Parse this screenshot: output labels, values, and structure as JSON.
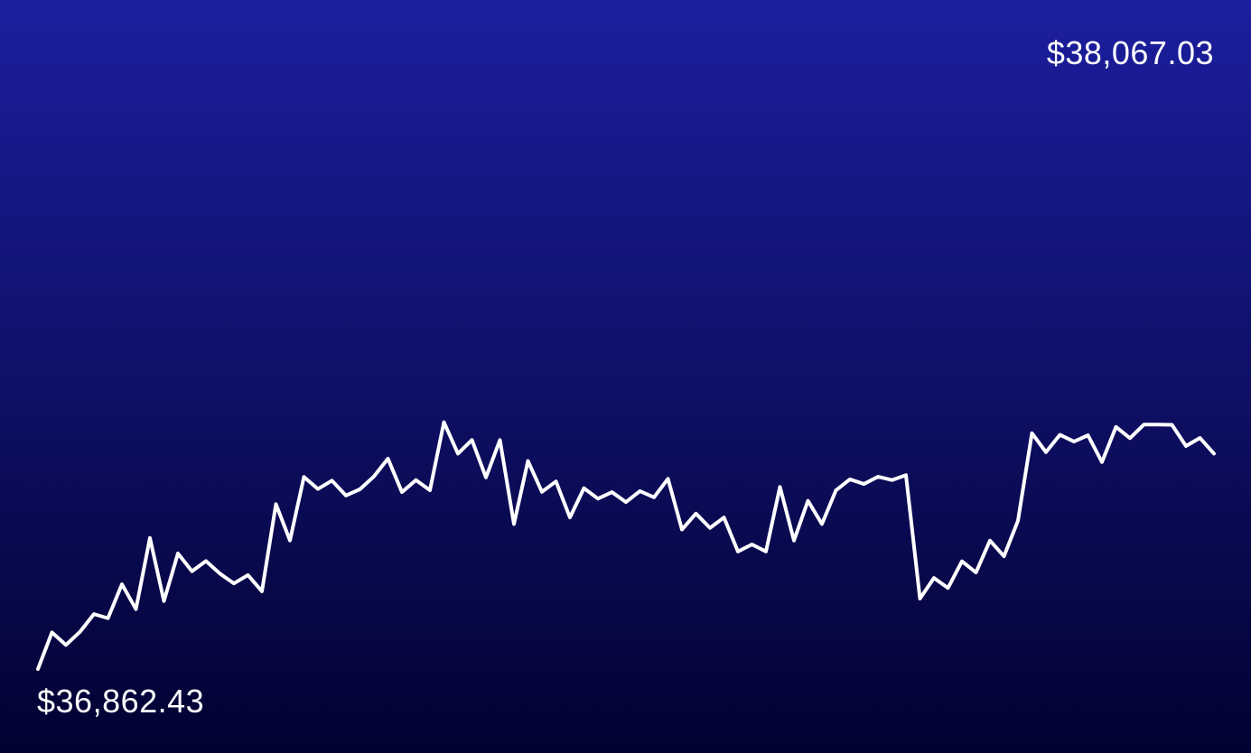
{
  "colors": {
    "background_top": "#1c1e9e",
    "background_bottom": "#020131",
    "line": "#ffffff"
  },
  "labels": {
    "high": "$38,067.03",
    "low": "$36,862.43"
  },
  "chart_data": {
    "type": "line",
    "title": "",
    "xlabel": "",
    "ylabel": "",
    "grid": false,
    "legend": "none",
    "ylim": [
      36862.43,
      38067.03
    ],
    "series": [
      {
        "values": [
          36862.43,
          36939.29,
          36912.94,
          36940.38,
          36977.72,
          36968.93,
          37040.31,
          36988.06,
          37137.47,
          37004.97,
          37104.9,
          37067.56,
          37088.96,
          37062.61,
          37041.96,
          37059.53,
          37025.49,
          37208.3,
          37132.08,
          37265.38,
          37240.12,
          37257.69,
          37226.4,
          37239.57,
          37266.49,
          37303.82,
          37233.54,
          37258.8,
          37237.4,
          37380.2,
          37314.31,
          37342.87,
          37264.3,
          37342.87,
          37166.57,
          37298.88,
          37234.08,
          37256.04,
          37180.3,
          37241.76,
          37219.8,
          37233.54,
          37212.68,
          37235.73,
          37222.56,
          37261.54,
          37155.05,
          37188.54,
          37158.36,
          37180.3,
          37108.95,
          37123.78,
          37108.95,
          37244.51,
          37132.01,
          37215.42,
          37166.57,
          37237.4,
          37260.45,
          37250.56,
          37265.93,
          37258.8,
          37269.23,
          37010.2,
          37053.5,
          37032.4,
          37088.42,
          37065.03,
          37131.98,
          37099.04,
          37173.57,
          37357.15,
          37317.4,
          37353.85,
          37339.57,
          37352.75,
          37296.6,
          37370.31,
          37346.71,
          37375.36,
          37375.36,
          37374.82,
          37330.25,
          37347.26,
          37314.31
        ]
      }
    ]
  }
}
